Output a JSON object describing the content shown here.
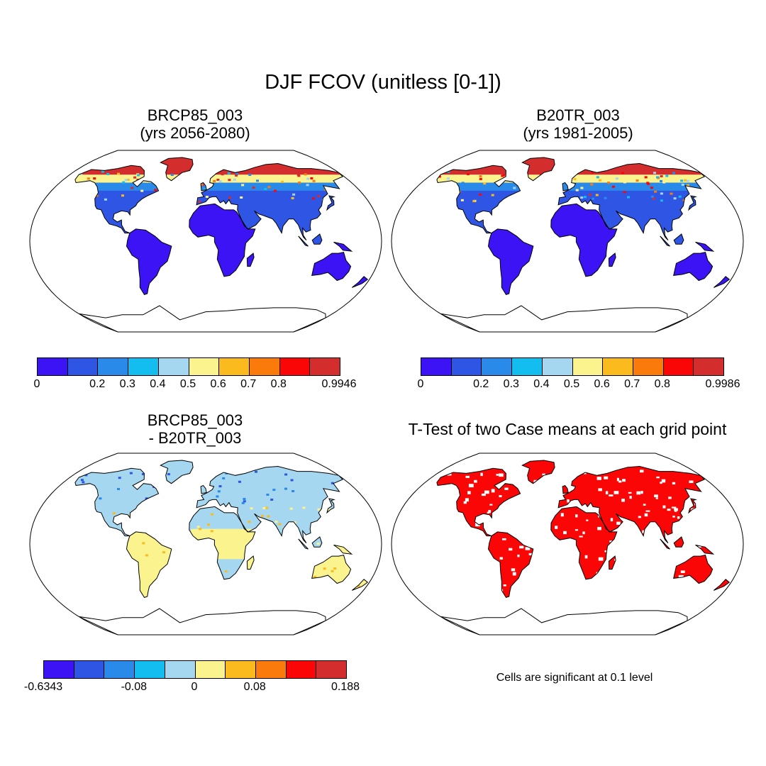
{
  "title": "DJF FCOV (unitless [0-1])",
  "palette": [
    "#3c13f5",
    "#2f55e4",
    "#2a8aea",
    "#14bdf0",
    "#a5d7f0",
    "#fbf38e",
    "#fbbb1e",
    "#fb7a0c",
    "#fb0606",
    "#d42d2d"
  ],
  "panels": [
    {
      "title_line1": "BRCP85_003",
      "title_line2": "(yrs 2056-2080)",
      "colorbar_labels": [
        "0",
        "0.2",
        "0.3",
        "0.4",
        "0.5",
        "0.6",
        "0.7",
        "0.8",
        "0.9946"
      ]
    },
    {
      "title_line1": "B20TR_003",
      "title_line2": "(yrs 1981-2005)",
      "colorbar_labels": [
        "0",
        "0.2",
        "0.3",
        "0.4",
        "0.5",
        "0.6",
        "0.7",
        "0.8",
        "0.9986"
      ]
    },
    {
      "title_line1": "BRCP85_003",
      "title_line2": "- B20TR_003",
      "colorbar_labels": [
        "-0.6343",
        "-0.08",
        "0",
        "0.08",
        "0.188"
      ]
    },
    {
      "title_line1": "T-Test of two Case means at each grid point",
      "note": "Cells are significant at 0.1 level"
    }
  ]
}
